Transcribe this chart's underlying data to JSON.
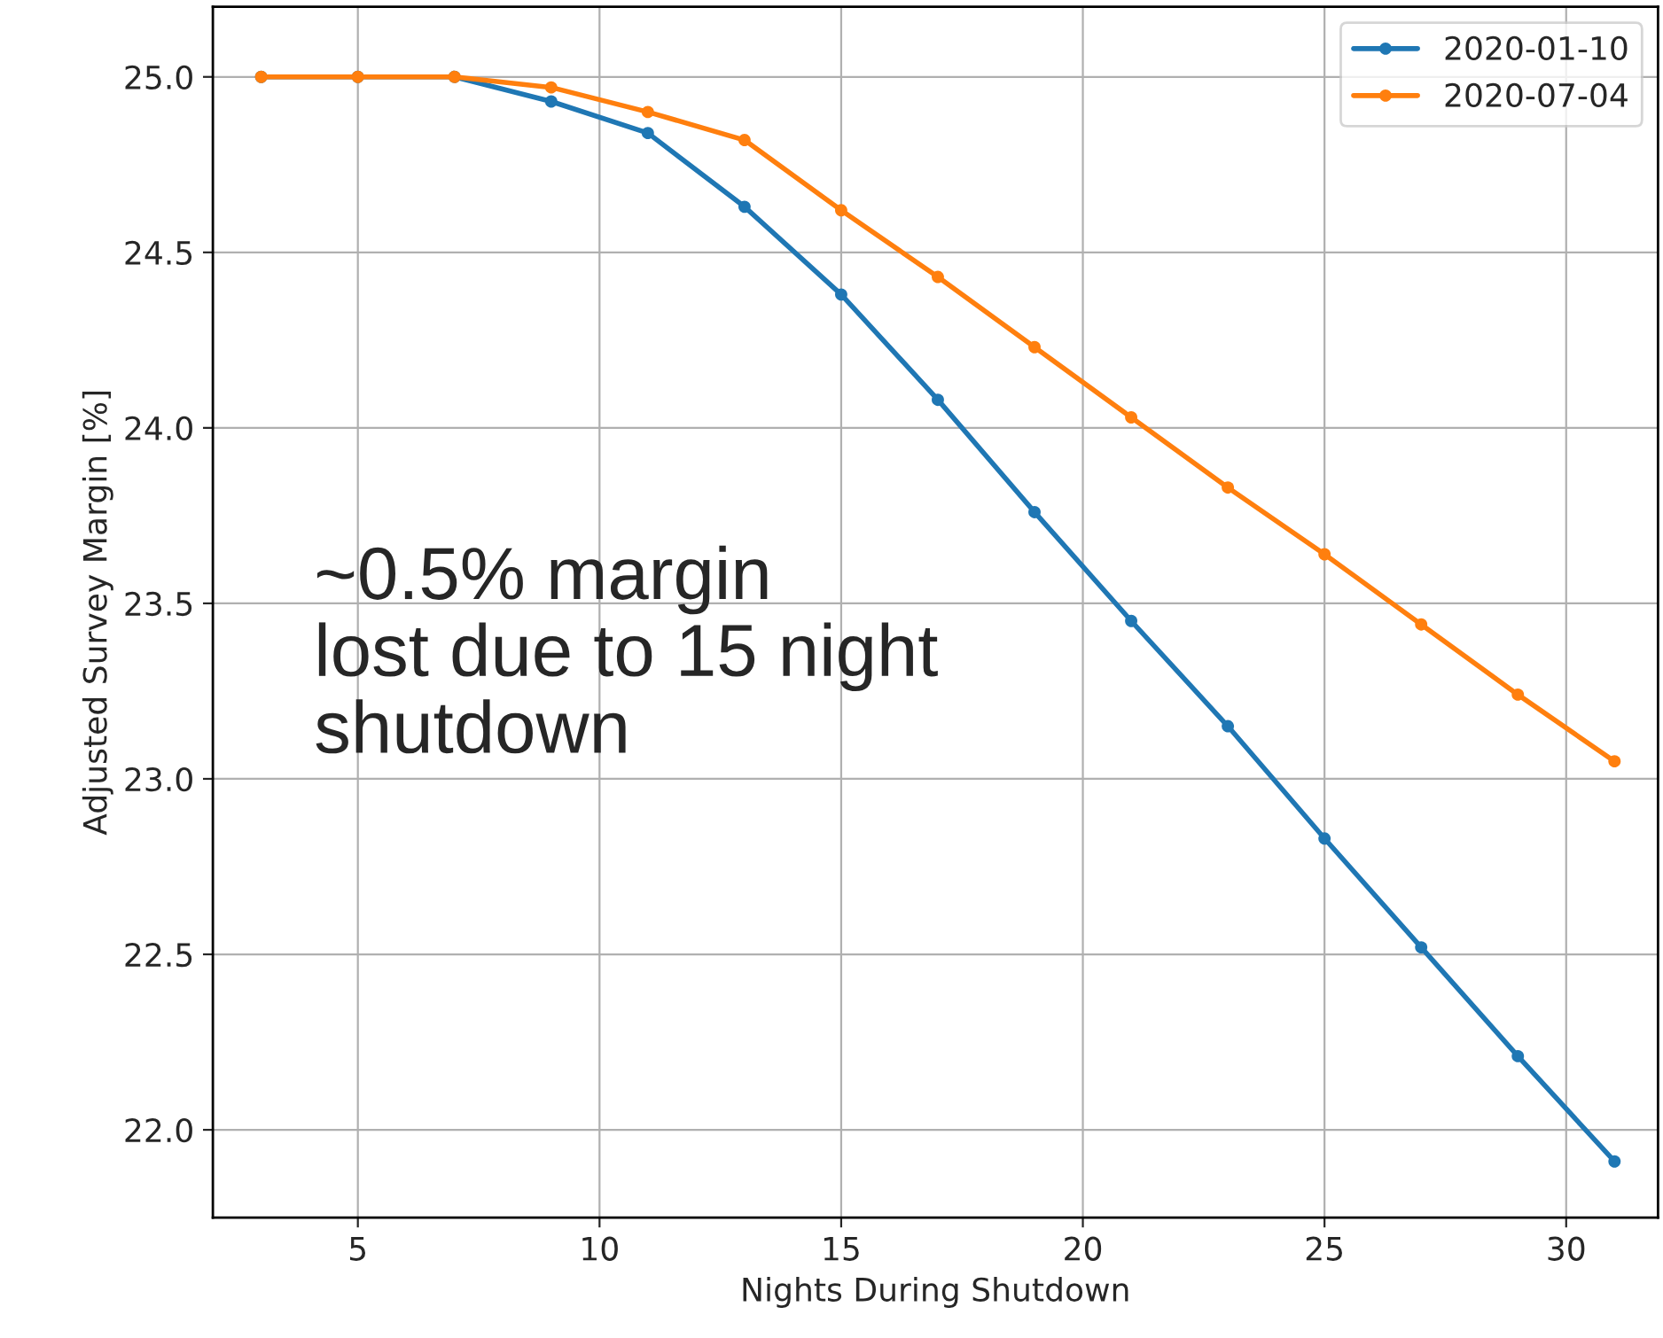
{
  "chart_data": {
    "type": "line",
    "xlabel": "Nights During Shutdown",
    "ylabel": "Adjusted Survey Margin [%]",
    "x": [
      3,
      5,
      7,
      9,
      11,
      13,
      15,
      17,
      19,
      21,
      23,
      25,
      27,
      29,
      31
    ],
    "series": [
      {
        "name": "2020-01-10",
        "color": "#1f77b4",
        "values": [
          25.0,
          25.0,
          25.0,
          24.93,
          24.84,
          24.63,
          24.38,
          24.08,
          23.76,
          23.45,
          23.15,
          22.83,
          22.52,
          22.21,
          21.91
        ]
      },
      {
        "name": "2020-07-04",
        "color": "#ff7f0e",
        "values": [
          25.0,
          25.0,
          25.0,
          24.97,
          24.9,
          24.82,
          24.62,
          24.43,
          24.23,
          24.03,
          23.83,
          23.64,
          23.44,
          23.24,
          23.05
        ]
      }
    ],
    "xlim": [
      2.0,
      31.9
    ],
    "xticks": [
      5,
      10,
      15,
      20,
      25,
      30
    ],
    "ylim": [
      21.75,
      25.2
    ],
    "yticks": [
      {
        "value": 22,
        "label": "22.0"
      },
      {
        "value": 22.5,
        "label": "22.5"
      },
      {
        "value": 23,
        "label": "23.0"
      },
      {
        "value": 23.5,
        "label": "23.5"
      },
      {
        "value": 24,
        "label": "24.0"
      },
      {
        "value": 24.5,
        "label": "24.5"
      },
      {
        "value": 25,
        "label": "25.0"
      }
    ],
    "annotations": [
      "~0.5% margin\nlost due to 15 night\nshutdown"
    ],
    "grid": true,
    "legend": "top right",
    "marker": "circle",
    "line_style": "solid"
  }
}
